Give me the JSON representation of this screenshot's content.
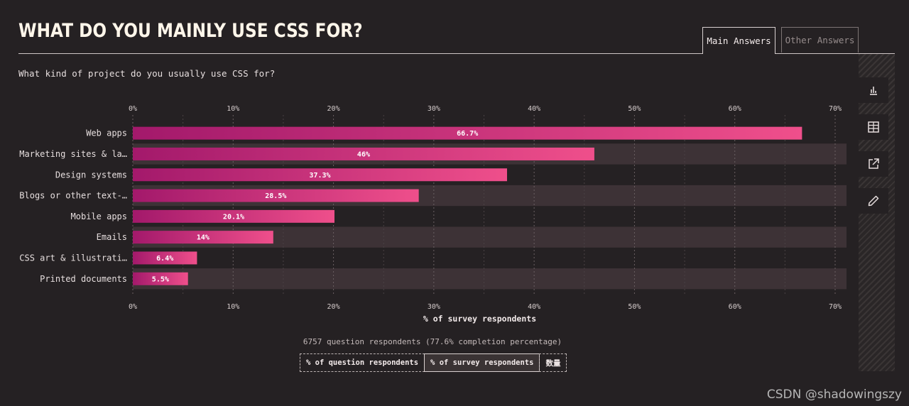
{
  "title": "WHAT DO YOU MAINLY USE CSS FOR?",
  "tabs": {
    "main": "Main Answers",
    "other": "Other Answers"
  },
  "question": "What kind of project do you usually use CSS for?",
  "sidebar": {
    "buttons": [
      {
        "icon": "bar-chart-icon"
      },
      {
        "icon": "table-icon"
      },
      {
        "icon": "share-icon"
      },
      {
        "icon": "edit-icon"
      }
    ]
  },
  "chart_data": {
    "type": "bar",
    "orientation": "horizontal",
    "categories": [
      "Web apps",
      "Marketing sites & la…",
      "Design systems",
      "Blogs or other text-…",
      "Mobile apps",
      "Emails",
      "CSS art & illustrati…",
      "Printed documents"
    ],
    "values": [
      66.7,
      46,
      37.3,
      28.5,
      20.1,
      14,
      6.4,
      5.5
    ],
    "value_labels": [
      "66.7%",
      "46%",
      "37.3%",
      "28.5%",
      "20.1%",
      "14%",
      "6.4%",
      "5.5%"
    ],
    "xticks": [
      "0%",
      "10%",
      "20%",
      "30%",
      "40%",
      "50%",
      "60%",
      "70%"
    ],
    "xlim": [
      0,
      70
    ],
    "xlabel": "% of survey respondents",
    "grid": true,
    "colors": {
      "bar_start": "#a3196b",
      "bar_end": "#ef4f8b",
      "band": "#3d3236"
    }
  },
  "footer": {
    "respondents": "6757 question respondents (77.6% completion percentage)",
    "toggles": [
      "% of question respondents",
      "% of survey respondents",
      "数量"
    ],
    "selected_toggle": 1
  },
  "watermark": "CSDN @shadowingszy"
}
